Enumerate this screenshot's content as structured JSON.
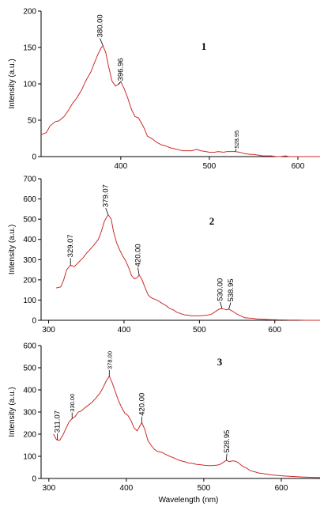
{
  "colors": {
    "series": "#cc2b2b",
    "axis": "#000000"
  },
  "x_axis_title": "Wavelength (nm)",
  "chart_data": [
    {
      "type": "line",
      "panel_number": "1",
      "ylabel": "Intensity (a.u.)",
      "xlim": [
        310,
        625
      ],
      "ylim": [
        0,
        200
      ],
      "x_ticks": [
        400,
        500,
        600
      ],
      "y_ticks": [
        0,
        50,
        100,
        150,
        200
      ],
      "series": [
        {
          "x": [
            310,
            316,
            320,
            326,
            330,
            336,
            340,
            346,
            350,
            356,
            360,
            366,
            370,
            374,
            378,
            380,
            383,
            386,
            390,
            394,
            397,
            400,
            404,
            408,
            412,
            416,
            420,
            426,
            430,
            436,
            440,
            446,
            450,
            456,
            460,
            466,
            470,
            476,
            480,
            486,
            490,
            496,
            500,
            506,
            510,
            516,
            520,
            526,
            529,
            534,
            540,
            546,
            550,
            556,
            560,
            566,
            570,
            576,
            580,
            586,
            590,
            596,
            600,
            606,
            610,
            616,
            620,
            625
          ],
          "y": [
            30,
            33,
            42,
            48,
            49,
            55,
            62,
            74,
            80,
            92,
            103,
            116,
            128,
            140,
            150,
            152,
            143,
            125,
            104,
            97,
            99,
            103,
            93,
            80,
            65,
            55,
            53,
            40,
            28,
            24,
            20,
            16,
            15,
            12,
            11,
            9,
            8,
            8,
            8,
            10,
            8,
            7,
            6,
            6,
            7,
            6,
            7,
            7,
            7,
            6,
            4,
            3,
            3,
            2,
            1,
            1,
            1,
            0,
            0,
            1,
            0,
            0,
            0,
            0,
            0,
            0,
            0,
            0
          ]
        }
      ],
      "annotations": [
        {
          "text": "380.00",
          "x": 380,
          "y": 152,
          "size": "normal"
        },
        {
          "text": "396.96",
          "x": 397,
          "y": 99,
          "size": "normal"
        },
        {
          "text": "528.95",
          "x": 529,
          "y": 7,
          "size": "small"
        }
      ]
    },
    {
      "type": "line",
      "panel_number": "2",
      "ylabel": "Intensity (a.u.)",
      "xlim": [
        290,
        660
      ],
      "ylim": [
        0,
        700
      ],
      "x_ticks": [
        300,
        400,
        500,
        600
      ],
      "y_ticks": [
        0,
        100,
        200,
        300,
        400,
        500,
        600,
        700
      ],
      "series": [
        {
          "x": [
            310,
            316,
            320,
            324,
            329,
            334,
            340,
            346,
            350,
            356,
            360,
            366,
            370,
            374,
            379,
            383,
            386,
            390,
            394,
            398,
            402,
            406,
            410,
            414,
            418,
            420,
            424,
            428,
            432,
            436,
            440,
            446,
            450,
            456,
            460,
            466,
            470,
            476,
            480,
            486,
            490,
            496,
            500,
            506,
            510,
            516,
            520,
            526,
            530,
            536,
            539,
            544,
            550,
            556,
            560,
            566,
            570,
            576,
            580,
            586,
            590,
            596,
            600,
            606,
            610,
            620,
            630,
            640,
            650,
            660
          ],
          "y": [
            160,
            165,
            200,
            250,
            272,
            265,
            288,
            310,
            330,
            355,
            372,
            400,
            440,
            490,
            522,
            500,
            440,
            385,
            350,
            320,
            295,
            262,
            220,
            205,
            212,
            225,
            200,
            160,
            125,
            112,
            105,
            95,
            85,
            72,
            60,
            50,
            40,
            32,
            27,
            25,
            22,
            22,
            22,
            24,
            25,
            30,
            40,
            55,
            58,
            52,
            55,
            45,
            30,
            20,
            13,
            11,
            10,
            7,
            6,
            5,
            4,
            3,
            3,
            2,
            2,
            1,
            1,
            0,
            0,
            0
          ]
        }
      ],
      "annotations": [
        {
          "text": "329.07",
          "x": 329,
          "y": 272,
          "size": "normal"
        },
        {
          "text": "379.07",
          "x": 379,
          "y": 522,
          "size": "normal"
        },
        {
          "text": "420.00",
          "x": 420,
          "y": 225,
          "size": "normal"
        },
        {
          "text": "530.00",
          "x": 530,
          "y": 58,
          "size": "normal"
        },
        {
          "text": "538.95",
          "x": 539,
          "y": 55,
          "size": "normal"
        }
      ]
    },
    {
      "type": "line",
      "panel_number": "3",
      "ylabel": "Intensity (a.u.)",
      "xlim": [
        290,
        650
      ],
      "ylim": [
        0,
        600
      ],
      "x_ticks": [
        300,
        400,
        500,
        600
      ],
      "y_ticks": [
        0,
        100,
        200,
        300,
        400,
        500,
        600
      ],
      "series": [
        {
          "x": [
            306,
            310,
            314,
            318,
            322,
            326,
            330,
            334,
            338,
            342,
            346,
            350,
            356,
            360,
            366,
            370,
            374,
            378,
            382,
            386,
            390,
            394,
            398,
            402,
            406,
            410,
            414,
            418,
            420,
            424,
            428,
            432,
            436,
            440,
            446,
            450,
            456,
            460,
            466,
            470,
            476,
            480,
            486,
            490,
            496,
            500,
            506,
            510,
            516,
            520,
            524,
            529,
            533,
            537,
            541,
            545,
            550,
            556,
            560,
            566,
            570,
            576,
            580,
            590,
            600,
            610,
            620,
            630,
            640,
            650
          ],
          "y": [
            200,
            175,
            172,
            195,
            225,
            255,
            270,
            280,
            300,
            305,
            318,
            328,
            345,
            360,
            385,
            410,
            440,
            462,
            430,
            390,
            350,
            320,
            295,
            285,
            262,
            228,
            215,
            240,
            252,
            220,
            170,
            150,
            132,
            122,
            118,
            110,
            100,
            95,
            85,
            80,
            75,
            70,
            68,
            64,
            62,
            60,
            58,
            58,
            60,
            62,
            70,
            82,
            76,
            80,
            78,
            70,
            55,
            45,
            35,
            30,
            25,
            22,
            20,
            15,
            12,
            10,
            8,
            6,
            5,
            4
          ]
        }
      ],
      "annotations": [
        {
          "text": "311.07",
          "x": 311,
          "y": 175,
          "size": "normal"
        },
        {
          "text": "330.00",
          "x": 330,
          "y": 270,
          "size": "small"
        },
        {
          "text": "378.00",
          "x": 378,
          "y": 462,
          "size": "small"
        },
        {
          "text": "420.00",
          "x": 420,
          "y": 252,
          "size": "normal"
        },
        {
          "text": "528.95",
          "x": 529,
          "y": 82,
          "size": "normal"
        }
      ]
    }
  ]
}
